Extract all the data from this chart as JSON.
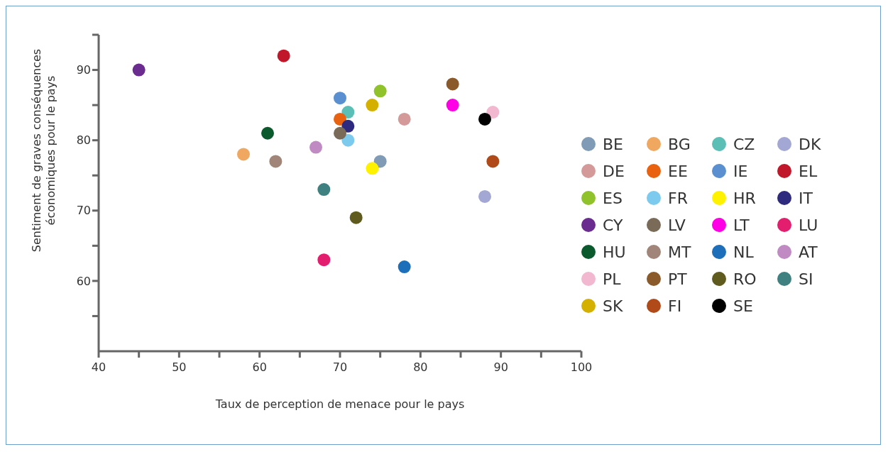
{
  "chart_data": {
    "type": "scatter",
    "xlabel": "Taux de perception de menace pour le pays",
    "ylabel": "Sentiment de graves conséquences économiques pour le pays",
    "xlim": [
      40,
      100
    ],
    "ylim": [
      50,
      95
    ],
    "xticks": [
      40,
      {
        "value": 45,
        "label": null
      },
      50,
      {
        "value": 55,
        "label": null
      },
      60,
      {
        "value": 65,
        "label": null
      },
      70,
      {
        "value": 75,
        "label": null
      },
      80,
      {
        "value": 85,
        "label": null
      },
      90,
      {
        "value": 95,
        "label": null
      },
      100
    ],
    "yticks": [
      {
        "value": 55,
        "label": null
      },
      60,
      {
        "value": 65,
        "label": null
      },
      70,
      {
        "value": 75,
        "label": null
      },
      80,
      {
        "value": 85,
        "label": null
      },
      90,
      {
        "value": 95,
        "label": null
      }
    ],
    "grid": false,
    "legend": "right",
    "marker": "circle",
    "series": [
      {
        "name": "BE",
        "color": "#7f9bb5",
        "x": [
          75
        ],
        "values": [
          77
        ]
      },
      {
        "name": "BG",
        "color": "#f0a860",
        "x": [
          58
        ],
        "values": [
          78
        ]
      },
      {
        "name": "CZ",
        "color": "#5bbfb5",
        "x": [
          71
        ],
        "values": [
          84
        ]
      },
      {
        "name": "DK",
        "color": "#a2a8d3",
        "x": [
          88
        ],
        "values": [
          72
        ]
      },
      {
        "name": "DE",
        "color": "#d49a9a",
        "x": [
          78
        ],
        "values": [
          83
        ]
      },
      {
        "name": "EE",
        "color": "#e8620f",
        "x": [
          70
        ],
        "values": [
          83
        ]
      },
      {
        "name": "IE",
        "color": "#5a8fd0",
        "x": [
          70
        ],
        "values": [
          86
        ]
      },
      {
        "name": "EL",
        "color": "#c0182a",
        "x": [
          63
        ],
        "values": [
          92
        ]
      },
      {
        "name": "ES",
        "color": "#8fc22b",
        "x": [
          75
        ],
        "values": [
          87
        ]
      },
      {
        "name": "FR",
        "color": "#7ccbee",
        "x": [
          71
        ],
        "values": [
          80
        ]
      },
      {
        "name": "HR",
        "color": "#fff200",
        "x": [
          74
        ],
        "values": [
          76
        ]
      },
      {
        "name": "IT",
        "color": "#2e2a7e",
        "x": [
          71
        ],
        "values": [
          82
        ]
      },
      {
        "name": "CY",
        "color": "#6a2c8e",
        "x": [
          45
        ],
        "values": [
          90
        ]
      },
      {
        "name": "LV",
        "color": "#7a6a58",
        "x": [
          70
        ],
        "values": [
          81
        ]
      },
      {
        "name": "LT",
        "color": "#ff00e6",
        "x": [
          84
        ],
        "values": [
          85
        ]
      },
      {
        "name": "LU",
        "color": "#e31e6e",
        "x": [
          68
        ],
        "values": [
          63
        ]
      },
      {
        "name": "HU",
        "color": "#0a5a2e",
        "x": [
          61
        ],
        "values": [
          81
        ]
      },
      {
        "name": "MT",
        "color": "#a08578",
        "x": [
          62
        ],
        "values": [
          77
        ]
      },
      {
        "name": "NL",
        "color": "#1c6fb8",
        "x": [
          78
        ],
        "values": [
          62
        ]
      },
      {
        "name": "AT",
        "color": "#c08ac2",
        "x": [
          67
        ],
        "values": [
          79
        ]
      },
      {
        "name": "PL",
        "color": "#f2b8d0",
        "x": [
          89
        ],
        "values": [
          84
        ]
      },
      {
        "name": "PT",
        "color": "#8b5a2b",
        "x": [
          84
        ],
        "values": [
          88
        ]
      },
      {
        "name": "RO",
        "color": "#5f5a1e",
        "x": [
          72
        ],
        "values": [
          69
        ]
      },
      {
        "name": "SI",
        "color": "#3f8080",
        "x": [
          68
        ],
        "values": [
          73
        ]
      },
      {
        "name": "SK",
        "color": "#d4b000",
        "x": [
          74
        ],
        "values": [
          85
        ]
      },
      {
        "name": "FI",
        "color": "#b04a18",
        "x": [
          89
        ],
        "values": [
          77
        ]
      },
      {
        "name": "SE",
        "color": "#000000",
        "x": [
          88
        ],
        "values": [
          83
        ]
      }
    ]
  }
}
